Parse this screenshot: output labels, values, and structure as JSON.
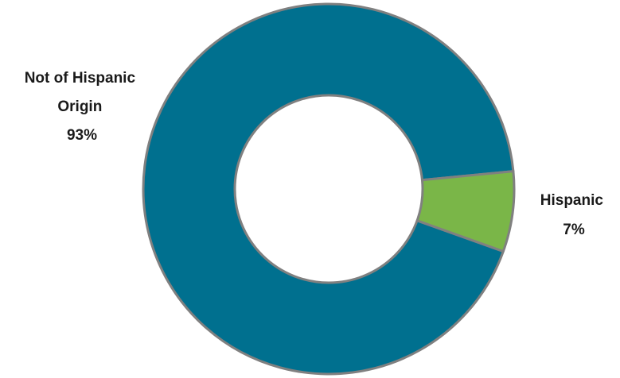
{
  "chart_data": {
    "type": "pie",
    "variant": "donut",
    "title": "",
    "slices": [
      {
        "name": "Not of Hispanic Origin",
        "value": 93,
        "label_lines": [
          "Not of Hispanic",
          "Origin"
        ],
        "pct_label": "93%",
        "color": "#00708f"
      },
      {
        "name": "Hispanic",
        "value": 7,
        "label_lines": [
          "Hispanic"
        ],
        "pct_label": "7%",
        "color": "#7ab648"
      }
    ],
    "border_color": "#808080",
    "legend": "none",
    "grid": false
  }
}
